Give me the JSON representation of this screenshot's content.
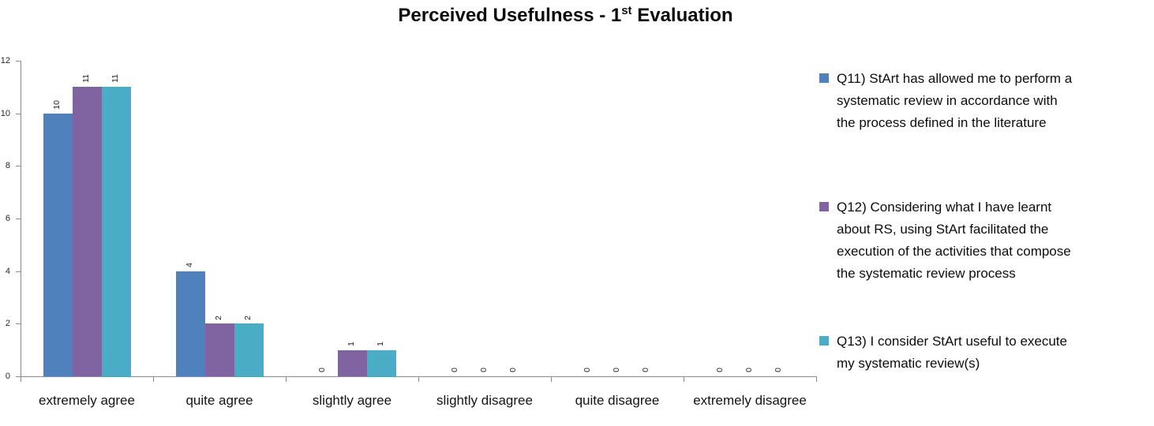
{
  "title": {
    "prefix": "Perceived Usefulness - 1",
    "sup": "st",
    "suffix": " Evaluation"
  },
  "chart_data": {
    "type": "bar",
    "title": "Perceived Usefulness - 1st Evaluation",
    "categories": [
      "extremely agree",
      "quite agree",
      "slightly agree",
      "slightly disagree",
      "quite disagree",
      "extremely disagree"
    ],
    "series": [
      {
        "name": "Q11) StArt has allowed me to perform a systematic review in accordance with the process defined in the literature",
        "color": "#4F81BD",
        "values": [
          10,
          4,
          0,
          0,
          0,
          0
        ]
      },
      {
        "name": "Q12) Considering what I have learnt about RS, using StArt facilitated the execution of the activities that compose the systematic review process",
        "color": "#8064A2",
        "values": [
          11,
          2,
          1,
          0,
          0,
          0
        ]
      },
      {
        "name": "Q13)  I consider StArt useful to execute my systematic review(s)",
        "color": "#4BACC6",
        "values": [
          11,
          2,
          1,
          0,
          0,
          0
        ]
      }
    ],
    "xlabel": "",
    "ylabel": "",
    "ylim": [
      0,
      12
    ],
    "yticks": [
      0,
      2,
      4,
      6,
      8,
      10,
      12
    ],
    "grid": false,
    "legend_position": "right",
    "data_labels": "values above bars, rotated 90° counterclockwise"
  },
  "legend": {
    "items": [
      {
        "color": "#4F81BD",
        "lines": [
          "Q11) StArt has allowed me to perform a",
          "systematic review in accordance with",
          "the process defined in the literature"
        ]
      },
      {
        "color": "#8064A2",
        "lines": [
          "Q12) Considering what I have learnt",
          "about RS, using StArt facilitated the",
          "execution of the activities that compose",
          "the systematic review process"
        ]
      },
      {
        "color": "#4BACC6",
        "lines": [
          "Q13)  I consider StArt useful to execute",
          "my systematic review(s)"
        ]
      }
    ]
  },
  "colors": {
    "axis": "#8C8C8C",
    "text": "#0d0d0d",
    "background": "#FFFFFF"
  }
}
